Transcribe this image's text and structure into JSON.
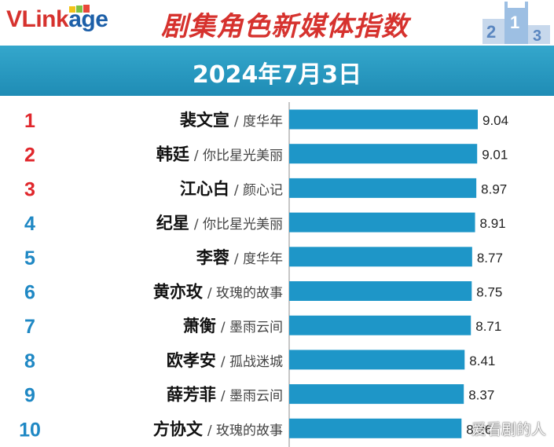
{
  "header": {
    "logo_main": "VLink",
    "logo_tail": "age",
    "title": "剧集角色新媒体指数",
    "date": "2024年7月3日"
  },
  "watermark": "爱看剧的人",
  "colors": {
    "bar": "#1e96c8",
    "rank_top3": "#e0262b",
    "rank_rest": "#1f88c4",
    "title_red": "#d6322e",
    "date_band": "#2a9cc4"
  },
  "chart_data": {
    "type": "bar",
    "orientation": "horizontal",
    "title": "",
    "xlabel": "",
    "ylabel": "",
    "xlim": [
      0,
      9.04
    ],
    "grid": false,
    "legend": "none",
    "categories": [
      {
        "rank": "1",
        "name": "裴文宣",
        "drama": "/ 度华年"
      },
      {
        "rank": "2",
        "name": "韩廷",
        "drama": "/ 你比星光美丽"
      },
      {
        "rank": "3",
        "name": "江心白",
        "drama": "/ 颜心记"
      },
      {
        "rank": "4",
        "name": "纪星",
        "drama": "/ 你比星光美丽"
      },
      {
        "rank": "5",
        "name": "李蓉",
        "drama": "/ 度华年"
      },
      {
        "rank": "6",
        "name": "黄亦玫",
        "drama": "/ 玫瑰的故事"
      },
      {
        "rank": "7",
        "name": "萧衡",
        "drama": "/ 墨雨云间"
      },
      {
        "rank": "8",
        "name": "欧孝安",
        "drama": "/ 孤战迷城"
      },
      {
        "rank": "9",
        "name": "薛芳菲",
        "drama": "/ 墨雨云间"
      },
      {
        "rank": "10",
        "name": "方协文",
        "drama": "/ 玫瑰的故事"
      }
    ],
    "values": [
      9.04,
      9.01,
      8.97,
      8.91,
      8.77,
      8.75,
      8.71,
      8.41,
      8.37,
      8.26
    ]
  }
}
